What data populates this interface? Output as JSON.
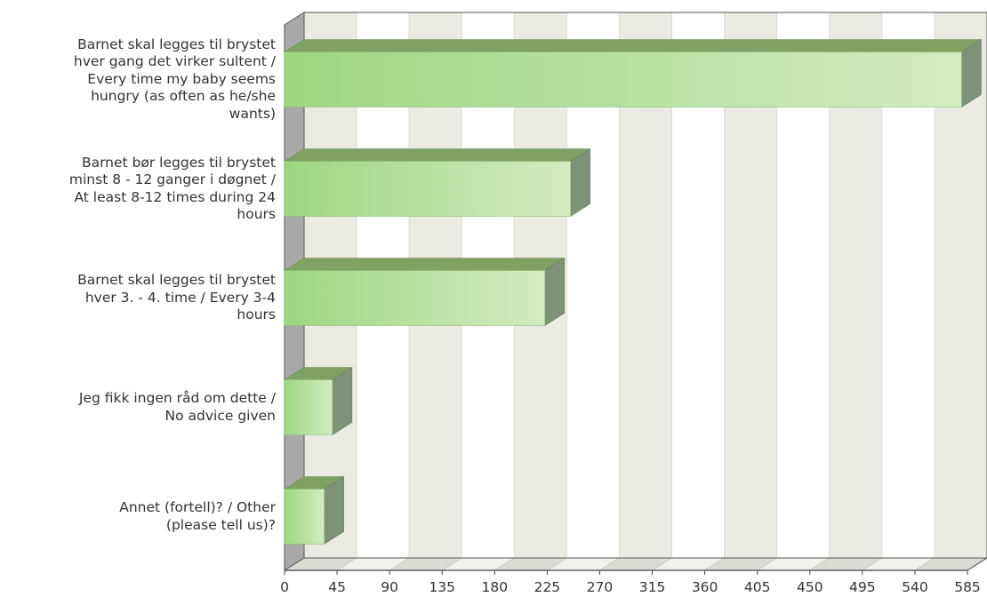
{
  "chart_data": {
    "type": "bar",
    "orientation": "horizontal",
    "title": "",
    "xlabel": "",
    "ylabel": "",
    "categories": [
      "Barnet skal legges til brystet\nhver gang det virker sultent /\nEvery time my baby seems\nhungry (as often as he/she\nwants)",
      "Barnet bør legges til brystet\nminst 8 - 12 ganger i døgnet /\nAt least 8-12 times during 24\nhours",
      "Barnet skal legges til brystet\nhver 3. - 4. time / Every 3-4\nhours",
      "Jeg fikk ingen råd om dette /\nNo advice given",
      "Annet (fortell)? / Other\n(please tell us)?"
    ],
    "values": [
      580,
      245,
      223,
      41,
      34
    ],
    "xlim": [
      0,
      585
    ],
    "x_ticks": [
      "0",
      "45",
      "90",
      "135",
      "180",
      "225",
      "270",
      "315",
      "360",
      "405",
      "450",
      "495",
      "540",
      "585"
    ],
    "grid": true,
    "style": "3d",
    "colors": {
      "bar_start": "#9ed680",
      "bar_end": "#d2ecc2",
      "bar_top": "#7fa264",
      "bar_side": "#7e9278",
      "stripe_light": "#ffffff",
      "stripe_dark": "#ebebe3",
      "wall_left": "#a9a9a9"
    }
  }
}
